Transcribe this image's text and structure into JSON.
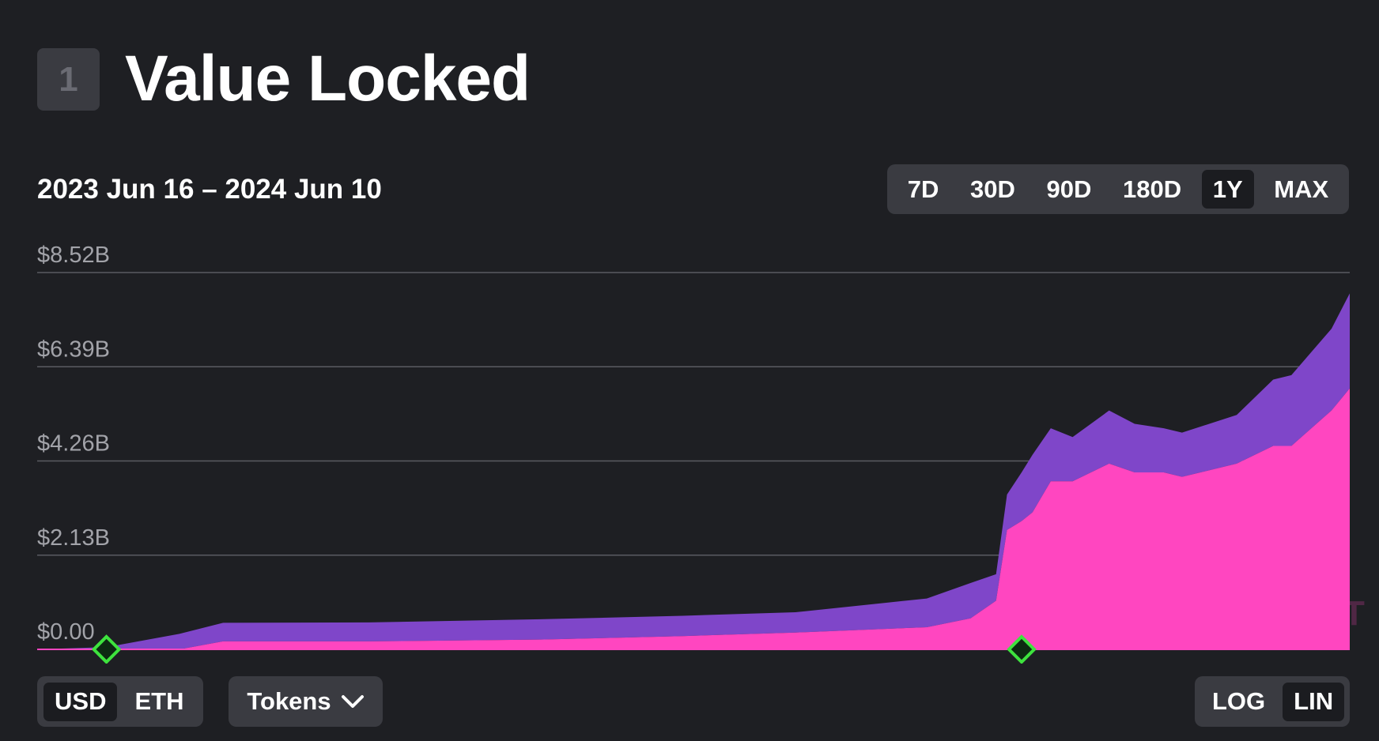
{
  "header": {
    "section_number": "1",
    "title": "Value Locked"
  },
  "date_range": "2023 Jun 16 – 2024 Jun 10",
  "range_options": [
    {
      "label": "7D",
      "active": false
    },
    {
      "label": "30D",
      "active": false
    },
    {
      "label": "90D",
      "active": false
    },
    {
      "label": "180D",
      "active": false
    },
    {
      "label": "1Y",
      "active": true
    },
    {
      "label": "MAX",
      "active": false
    }
  ],
  "unit_toggle": {
    "usd": "USD",
    "eth": "ETH",
    "active": "USD"
  },
  "tokens_dropdown": {
    "label": "Tokens",
    "icon": "chevron-down-icon"
  },
  "scale_toggle": {
    "log": "LOG",
    "lin": "LIN",
    "active": "LIN"
  },
  "watermark": "L2BEAT",
  "colors": {
    "background": "#1e1f23",
    "series_total": "#7f46c9",
    "series_pink": "#ff46c0",
    "marker": "#3ee33e",
    "button_bg": "#3a3b41"
  },
  "chart_data": {
    "type": "area",
    "stacked": true,
    "y_scale": "linear",
    "y_ticks": [
      "$0.00",
      "$2.13B",
      "$4.26B",
      "$6.39B",
      "$8.52B"
    ],
    "ylim": [
      0,
      8.52
    ],
    "y_unit": "USD billions",
    "xlim": [
      "2023-06-16",
      "2024-06-10"
    ],
    "grid": true,
    "legend": "none",
    "series": [
      {
        "color": "#ff46c0",
        "x": [
          "2023-06-16",
          "2023-07-25",
          "2023-08-06",
          "2023-09-15",
          "2023-11-01",
          "2023-12-10",
          "2024-01-10",
          "2024-02-15",
          "2024-02-27",
          "2024-03-05",
          "2024-03-08",
          "2024-03-12",
          "2024-03-15",
          "2024-03-20",
          "2024-03-26",
          "2024-04-05",
          "2024-04-12",
          "2024-04-20",
          "2024-04-25",
          "2024-05-10",
          "2024-05-20",
          "2024-05-25",
          "2024-06-05",
          "2024-06-10"
        ],
        "values": [
          0,
          0,
          0.18,
          0.18,
          0.22,
          0.3,
          0.38,
          0.5,
          0.7,
          1.1,
          2.7,
          2.9,
          3.1,
          3.8,
          3.8,
          4.2,
          4.0,
          4.0,
          3.9,
          4.2,
          4.6,
          4.6,
          5.4,
          5.9
        ]
      },
      {
        "color": "#7f46c9",
        "x": [
          "2023-06-16",
          "2023-07-05",
          "2023-07-25",
          "2023-08-06",
          "2023-09-15",
          "2023-11-01",
          "2023-12-10",
          "2024-01-10",
          "2024-02-15",
          "2024-02-27",
          "2024-03-05",
          "2024-03-08",
          "2024-03-12",
          "2024-03-15",
          "2024-03-20",
          "2024-03-26",
          "2024-04-05",
          "2024-04-12",
          "2024-04-20",
          "2024-04-25",
          "2024-05-10",
          "2024-05-20",
          "2024-05-25",
          "2024-06-05",
          "2024-06-10"
        ],
        "values": [
          0,
          0.05,
          0.35,
          0.42,
          0.43,
          0.46,
          0.46,
          0.46,
          0.65,
          0.8,
          0.6,
          0.8,
          1.1,
          1.3,
          1.2,
          1.0,
          1.2,
          1.1,
          1.0,
          1.0,
          1.1,
          1.5,
          1.6,
          1.85,
          2.15
        ]
      }
    ],
    "markers": [
      {
        "x": "2023-07-05",
        "shape": "diamond",
        "color": "#3ee33e"
      },
      {
        "x": "2024-03-12",
        "shape": "diamond",
        "color": "#3ee33e"
      }
    ]
  }
}
